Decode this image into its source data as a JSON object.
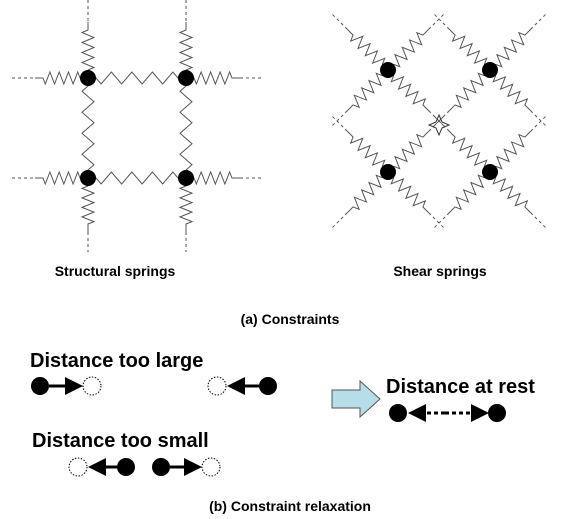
{
  "panels": [
    {
      "label": "Structural springs"
    },
    {
      "label": "Shear springs"
    }
  ],
  "caption_a": "(a) Constraints",
  "cases": [
    {
      "label": "Distance too large"
    },
    {
      "label": "Distance too small"
    },
    {
      "label": "Distance at rest"
    }
  ],
  "caption_b": "(b) Constraint relaxation"
}
